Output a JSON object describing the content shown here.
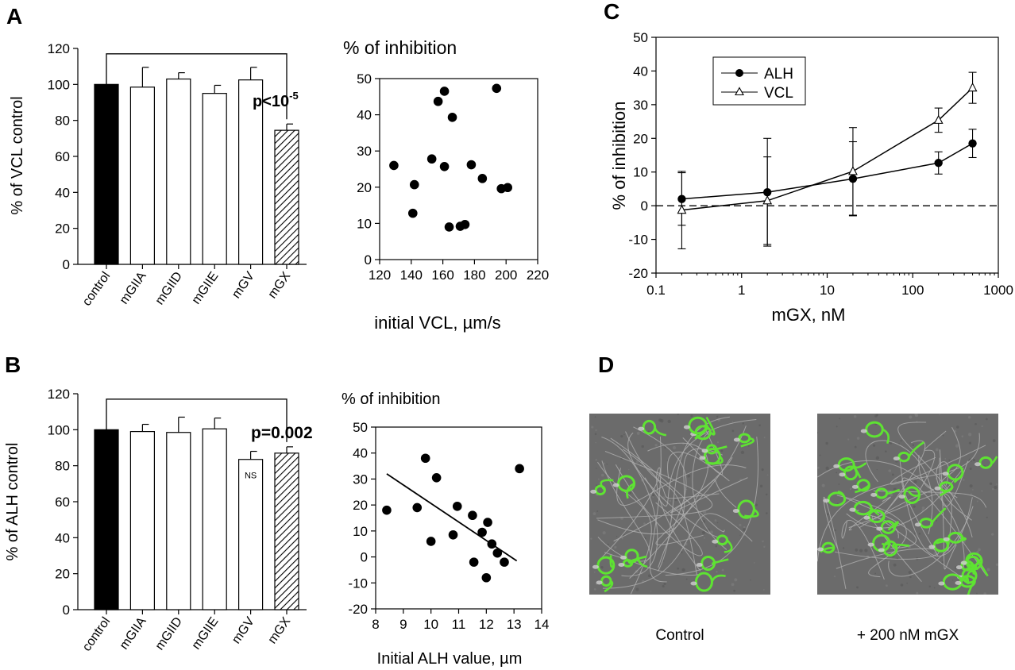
{
  "panel_labels": [
    "A",
    "B",
    "C",
    "D"
  ],
  "chart_data": [
    {
      "id": "A-bar",
      "type": "bar",
      "categories": [
        "control",
        "mGIIA",
        "mGIID",
        "mGIIE",
        "mGV",
        "mGX"
      ],
      "values": [
        100,
        98.5,
        103,
        95,
        102.5,
        74.5
      ],
      "errors": [
        0,
        11,
        3.5,
        4.5,
        7,
        3.5
      ],
      "fills": [
        "solid",
        "open",
        "open",
        "open",
        "open",
        "hatched"
      ],
      "ylabel": "% of VCL control",
      "ylim": [
        0,
        120
      ],
      "yticks": [
        0,
        20,
        40,
        60,
        80,
        100,
        120
      ],
      "bracket": {
        "from": 0,
        "to": 5,
        "level": 117
      },
      "significance": {
        "text": "p<10",
        "superscript": "-5"
      }
    },
    {
      "id": "A-scatter",
      "type": "scatter",
      "title": "% of inhibition",
      "xlabel": "initial VCL, µm/s",
      "xlim": [
        120,
        220
      ],
      "ylim": [
        0,
        50
      ],
      "xticks": [
        120,
        140,
        160,
        180,
        200,
        220
      ],
      "yticks": [
        0,
        10,
        20,
        30,
        40,
        50
      ],
      "points": [
        [
          129,
          26
        ],
        [
          141,
          12.8
        ],
        [
          142,
          20.7
        ],
        [
          153,
          27.8
        ],
        [
          157,
          43.7
        ],
        [
          161,
          46.5
        ],
        [
          161,
          25.7
        ],
        [
          164,
          9
        ],
        [
          166,
          39.3
        ],
        [
          171,
          9.2
        ],
        [
          174,
          9.7
        ],
        [
          178,
          26.2
        ],
        [
          185,
          22.4
        ],
        [
          194,
          47.3
        ],
        [
          197,
          19.6
        ],
        [
          201,
          19.9
        ]
      ],
      "grid": false
    },
    {
      "id": "B-bar",
      "type": "bar",
      "categories": [
        "control",
        "mGIIA",
        "mGIID",
        "mGIIE",
        "mGV",
        "mGX"
      ],
      "values": [
        100,
        99,
        98.5,
        100.5,
        83.5,
        87
      ],
      "errors": [
        0,
        4,
        8.5,
        6,
        4.5,
        3.5
      ],
      "fills": [
        "solid",
        "open",
        "open",
        "open",
        "open",
        "hatched"
      ],
      "ylabel": "% of ALH control",
      "ylim": [
        0,
        120
      ],
      "yticks": [
        0,
        20,
        40,
        60,
        80,
        100,
        120
      ],
      "bracket": {
        "from": 0,
        "to": 5,
        "level": 117
      },
      "significance": {
        "text": "p=0.002",
        "superscript": ""
      },
      "bar_annotations": [
        {
          "index": 4,
          "text": "NS"
        }
      ]
    },
    {
      "id": "B-scatter",
      "type": "scatter",
      "title": "% of inhibition",
      "xlabel": "Initial ALH value, µm",
      "xlim": [
        8,
        14
      ],
      "ylim": [
        -20,
        50
      ],
      "xticks": [
        8,
        9,
        10,
        11,
        12,
        13,
        14
      ],
      "yticks": [
        -20,
        -10,
        0,
        10,
        20,
        30,
        40,
        50
      ],
      "points": [
        [
          8.4,
          18
        ],
        [
          9.5,
          19
        ],
        [
          9.8,
          38
        ],
        [
          10,
          6
        ],
        [
          10.2,
          30.5
        ],
        [
          10.8,
          8.5
        ],
        [
          10.95,
          19.5
        ],
        [
          11.5,
          16
        ],
        [
          11.55,
          -2
        ],
        [
          11.85,
          9.5
        ],
        [
          12,
          -8
        ],
        [
          12.05,
          13.3
        ],
        [
          12.2,
          5
        ],
        [
          12.4,
          1.5
        ],
        [
          12.65,
          -2
        ],
        [
          13.2,
          34
        ]
      ],
      "trendline": {
        "x": [
          8.4,
          13.1
        ],
        "y": [
          32,
          -1.5
        ]
      },
      "grid": false
    },
    {
      "id": "C-line",
      "type": "line",
      "xlabel": "mGX, nM",
      "ylabel": "% of inhibition",
      "xscale": "log",
      "xlim": [
        0.1,
        1000
      ],
      "ylim": [
        -20,
        50
      ],
      "xticks": [
        0.1,
        1,
        10,
        100,
        1000
      ],
      "xtick_labels": [
        "0.1",
        "1",
        "10",
        "100",
        "1000"
      ],
      "yticks": [
        -20,
        -10,
        0,
        10,
        20,
        30,
        40,
        50
      ],
      "legend": "top-left",
      "reference_line": {
        "y": 0,
        "style": "dashed"
      },
      "series": [
        {
          "name": "ALH",
          "marker": "filled-circle",
          "x": [
            0.2,
            2,
            20,
            200,
            500
          ],
          "y": [
            2,
            4,
            8,
            12.7,
            18.5
          ],
          "errors": [
            7.8,
            16,
            11,
            3.3,
            4.2
          ]
        },
        {
          "name": "VCL",
          "marker": "open-triangle",
          "x": [
            0.2,
            2,
            20,
            200,
            500
          ],
          "y": [
            -1.3,
            1.5,
            10.2,
            25.4,
            35
          ],
          "errors": [
            11.5,
            13,
            13,
            3.6,
            4.6
          ]
        }
      ]
    }
  ],
  "micrographs": [
    {
      "caption": "Control",
      "density": 0.6
    },
    {
      "caption": "+ 200 nM mGX",
      "density": 1.0
    }
  ],
  "colors": {
    "ink": "#000000",
    "bar_solid": "#000000",
    "bar_open": "#ffffff",
    "micrograph_background": "#6b6b6b",
    "fluorescence": "#5ee332"
  }
}
